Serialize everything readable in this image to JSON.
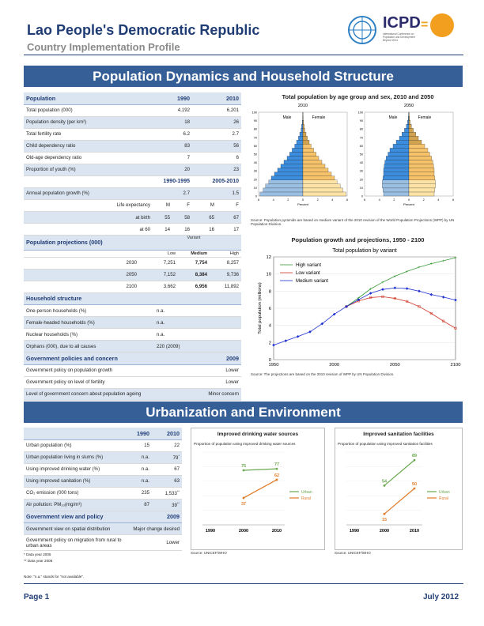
{
  "header": {
    "title": "Lao People's Democratic Republic",
    "subtitle": "Country Implementation Profile",
    "icpd": "ICPD",
    "icpd_small": "International Conference on Population and Development Beyond 2014"
  },
  "sections": {
    "pop": "Population Dynamics and Household Structure",
    "urban": "Urbanization and Environment"
  },
  "population": {
    "header": [
      "Population",
      "1990",
      "2010"
    ],
    "rows": [
      [
        "Total population (000)",
        "4,192",
        "6,201"
      ],
      [
        "Population density (per km²)",
        "18",
        "26"
      ],
      [
        "Total fertility rate",
        "6.2",
        "2.7"
      ],
      [
        "Child dependency ratio",
        "83",
        "56"
      ],
      [
        "Old-age dependency ratio",
        "7",
        "6"
      ],
      [
        "Proportion of youth (%)",
        "20",
        "23"
      ]
    ],
    "period_header": [
      "",
      "1990-1995",
      "2005-2010"
    ],
    "growth": [
      "Annual population growth (%)",
      "2.7",
      "1.5"
    ],
    "life_labels": [
      "Life expectancy",
      "M",
      "F",
      "M",
      "F"
    ],
    "life_birth": [
      "at birth",
      "55",
      "58",
      "65",
      "67"
    ],
    "life_60": [
      "at 60",
      "14",
      "16",
      "16",
      "17"
    ]
  },
  "projections": {
    "title": "Population projections (000)",
    "variant": "Variant",
    "cols": [
      "Low",
      "Medium",
      "High"
    ],
    "rows": [
      [
        "2030",
        "7,251",
        "7,754",
        "8,257"
      ],
      [
        "2050",
        "7,152",
        "8,384",
        "9,736"
      ],
      [
        "2100",
        "3,662",
        "6,956",
        "11,892"
      ]
    ]
  },
  "household": {
    "title": "Household structure",
    "rows": [
      [
        "One-person households (%)",
        "n.a."
      ],
      [
        "Female-headed households (%)",
        "n.a."
      ],
      [
        "Nuclear households (%)",
        "n.a."
      ],
      [
        "Orphans (000), due to all causes",
        "220 (2009)"
      ]
    ]
  },
  "policies": {
    "title": "Government policies and concern",
    "year": "2009",
    "rows": [
      [
        "Government policy on population growth",
        "Lower"
      ],
      [
        "Government policy on level of fertility",
        "Lower"
      ],
      [
        "Level of government concern about population ageing",
        "Minor concern"
      ]
    ]
  },
  "pyramid": {
    "title": "Total population by age group and sex, 2010 and 2050",
    "years": [
      "2010",
      "2050"
    ],
    "male": "Male",
    "female": "Female",
    "axis_label": "Percent",
    "ages": [
      "0",
      "10",
      "20",
      "30",
      "40",
      "50",
      "60",
      "70",
      "80",
      "90",
      "100"
    ],
    "xticks": [
      "6",
      "4",
      "2",
      "0",
      "2",
      "4",
      "6"
    ],
    "shares_2010": [
      6.8,
      6.3,
      5.9,
      5.4,
      5.0,
      4.5,
      4.0,
      3.5,
      3.0,
      2.5,
      2.1,
      1.7,
      1.3,
      1.0,
      0.7,
      0.5,
      0.3,
      0.2,
      0.1,
      0.05,
      0.02
    ],
    "shares_2050": [
      4.0,
      4.1,
      4.2,
      4.2,
      4.1,
      4.0,
      4.0,
      3.9,
      3.8,
      3.6,
      3.3,
      3.0,
      2.5,
      2.0,
      1.5,
      1.1,
      0.7,
      0.4,
      0.2,
      0.1,
      0.05
    ],
    "source": "Source: Population pyramids are based on medium variant of the 2010 revision of the World Population Projections (WPP) by UN Population Division."
  },
  "growth_chart": {
    "title": "Population growth and projections, 1950 - 2100",
    "subtitle": "Total population by variant",
    "ylabel": "Total population (millions)",
    "source": "Source: The projections are based on the 2010 revision of WPP by UN Population Division.",
    "chart_data": {
      "type": "line",
      "xlim": [
        1950,
        2100
      ],
      "ylim": [
        0,
        12
      ],
      "yticks": [
        0,
        2,
        4,
        6,
        8,
        10,
        12
      ],
      "xticks": [
        1950,
        2000,
        2050,
        2100
      ],
      "legend": "top-left",
      "series": [
        {
          "name": "High variant",
          "color": "#3a9a3a",
          "x": [
            2010,
            2020,
            2030,
            2040,
            2050,
            2060,
            2070,
            2080,
            2090,
            2100
          ],
          "y": [
            6.2,
            7.2,
            8.26,
            9.05,
            9.74,
            10.3,
            10.8,
            11.2,
            11.55,
            11.9
          ]
        },
        {
          "name": "Low variant",
          "color": "#d03a2a",
          "x": [
            2010,
            2020,
            2030,
            2040,
            2050,
            2060,
            2070,
            2080,
            2090,
            2100
          ],
          "y": [
            6.2,
            6.85,
            7.25,
            7.35,
            7.15,
            6.8,
            6.2,
            5.4,
            4.5,
            3.66
          ]
        },
        {
          "name": "Medium variant",
          "color": "#1c2fd0",
          "x": [
            1950,
            1960,
            1970,
            1980,
            1990,
            2000,
            2010,
            2020,
            2030,
            2040,
            2050,
            2060,
            2070,
            2080,
            2090,
            2100
          ],
          "y": [
            1.7,
            2.2,
            2.7,
            3.25,
            4.19,
            5.3,
            6.2,
            7.0,
            7.75,
            8.2,
            8.38,
            8.3,
            8.0,
            7.6,
            7.3,
            6.96
          ]
        }
      ]
    }
  },
  "urban_table": {
    "header": [
      "",
      "1990",
      "2010"
    ],
    "rows": [
      [
        "Urban population (%)",
        "15",
        "22",
        ""
      ],
      [
        "Urban population living in slums (%)",
        "n.a.",
        "79",
        "*"
      ],
      [
        "Using improved drinking water (%)",
        "n.a.",
        "67",
        ""
      ],
      [
        "Using improved sanitation (%)",
        "n.a.",
        "63",
        ""
      ],
      [
        "CO₂ emission (000 tons)",
        "235",
        "1,533",
        "**"
      ],
      [
        "Air pollution: PM₁₀(mg/m³)",
        "87",
        "39",
        "**"
      ]
    ]
  },
  "view": {
    "title": "Government view and policy",
    "year": "2009",
    "rows": [
      [
        "Government view on spatial distribution",
        "Major change desired"
      ],
      [
        "Government policy on migration from rural to urban areas",
        "Lower"
      ]
    ],
    "notes": [
      "* Data year 2005",
      "** Data year 2008"
    ],
    "na_note": "Note: \"n.a.\" stands for \"not available\"."
  },
  "water": {
    "title": "Improved drinking water sources",
    "subtitle": "Proportion of population using improved drinking water sources",
    "source": "Source: UNICEF/WHO",
    "chart_data": {
      "type": "line",
      "x": [
        1990,
        2000,
        2010
      ],
      "ylim": [
        0,
        100
      ],
      "series": [
        {
          "name": "Urban",
          "color": "#6aa84f",
          "values": [
            null,
            75,
            77
          ]
        },
        {
          "name": "Rural",
          "color": "#e07b29",
          "values": [
            null,
            37,
            62
          ]
        }
      ]
    },
    "labels": {
      "u2000": "75",
      "u2010": "77",
      "r2000": "37",
      "r2010": "62"
    }
  },
  "sanitation": {
    "title": "Improved sanitation facilities",
    "subtitle": "Proportion of population using improved sanitation facilities",
    "source": "Source: UNICEF/WHO",
    "chart_data": {
      "type": "line",
      "x": [
        1990,
        2000,
        2010
      ],
      "ylim": [
        0,
        100
      ],
      "series": [
        {
          "name": "Urban",
          "color": "#6aa84f",
          "values": [
            null,
            54,
            89
          ]
        },
        {
          "name": "Rural",
          "color": "#e07b29",
          "values": [
            null,
            15,
            50
          ]
        }
      ]
    },
    "labels": {
      "u2000": "54",
      "u2010": "89",
      "r2000": "15",
      "r2010": "50"
    }
  },
  "footer": {
    "page": "Page 1",
    "date": "July 2012"
  }
}
